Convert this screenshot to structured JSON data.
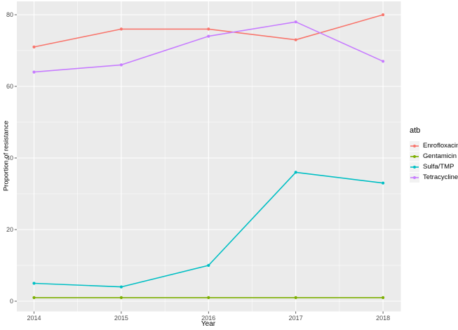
{
  "figure": {
    "background": "#FFFFFF",
    "panel_background": "#EBEBEB",
    "grid_color": "#FFFFFF",
    "tick_color": "#333333",
    "tick_label_color": "#4D4D4D",
    "axis_title_color": "#000000",
    "legend_key_background": "#F2F2F2"
  },
  "chart_data": {
    "type": "line",
    "title": "",
    "xlabel": "Year",
    "ylabel": "Proportion of resistance",
    "x": [
      2014,
      2015,
      2016,
      2017,
      2018
    ],
    "x_tick_labels": [
      "2014",
      "2015",
      "2016",
      "2017",
      "2018"
    ],
    "y_ticks": [
      0,
      20,
      40,
      60,
      80
    ],
    "y_tick_labels": [
      "0",
      "20",
      "40",
      "60",
      "80"
    ],
    "y_minor_ticks": [
      10,
      30,
      50,
      70
    ],
    "x_minor_ticks": [
      2014.5,
      2015.5,
      2016.5,
      2017.5
    ],
    "ylim": [
      -2.95,
      83.95
    ],
    "xlim": [
      2013.8,
      2018.2
    ],
    "grid": "major-and-minor",
    "legend_title": "atb",
    "legend_position": "right",
    "marker": "point",
    "series": [
      {
        "name": "Enrofloxacin",
        "color": "#F8766D",
        "values": [
          71,
          76,
          76,
          73,
          80
        ]
      },
      {
        "name": "Gentamicin",
        "color": "#7CAE00",
        "values": [
          1,
          1,
          1,
          1,
          1
        ]
      },
      {
        "name": "Sulfa/TMP",
        "color": "#00BFC4",
        "values": [
          5,
          4,
          10,
          36,
          33
        ]
      },
      {
        "name": "Tetracycline",
        "color": "#C77CFF",
        "values": [
          64,
          66,
          74,
          78,
          67
        ]
      }
    ]
  }
}
